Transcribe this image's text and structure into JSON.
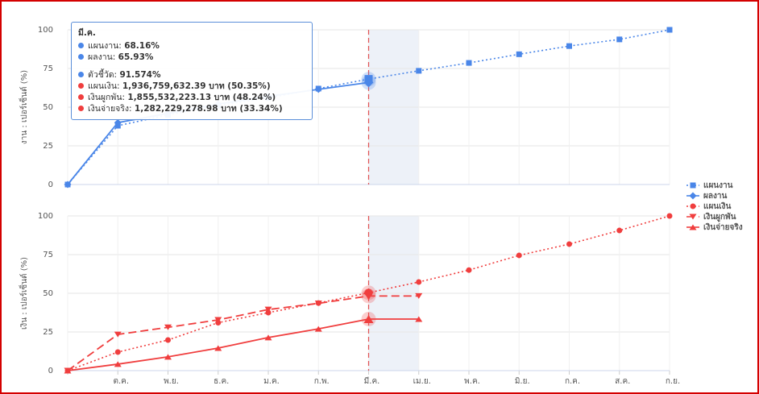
{
  "chart_data": [
    {
      "type": "line",
      "y_label": "งาน : เปอร์เซ็นต์ (%)",
      "categories": [
        null,
        "ต.ค.",
        "พ.ย.",
        "ธ.ค.",
        "ม.ค.",
        "ก.พ.",
        "มี.ค.",
        "เม.ย.",
        "พ.ค.",
        "มิ.ย.",
        "ก.ค.",
        "ส.ค.",
        "ก.ย."
      ],
      "ylim": [
        0,
        100
      ],
      "yticks": [
        0,
        25,
        50,
        75,
        100
      ],
      "grid": true,
      "series": [
        {
          "name": "แผนงาน",
          "color": "#4a86e8",
          "marker": "square",
          "dash": "dotted",
          "values": [
            0,
            38,
            45,
            51,
            56,
            62,
            68.16,
            73.5,
            78.6,
            84.2,
            89.5,
            93.8,
            100
          ]
        },
        {
          "name": "ผลงาน",
          "color": "#4a86e8",
          "marker": "diamond",
          "dash": "solid",
          "values": [
            0,
            40,
            46,
            52,
            57,
            61.5,
            65.93,
            null,
            null,
            null,
            null,
            null,
            null
          ]
        }
      ]
    },
    {
      "type": "line",
      "y_label": "เงิน : เปอร์เซ็นต์ (%)",
      "categories": [
        null,
        "ต.ค.",
        "พ.ย.",
        "ธ.ค.",
        "ม.ค.",
        "ก.พ.",
        "มี.ค.",
        "เม.ย.",
        "พ.ค.",
        "มิ.ย.",
        "ก.ค.",
        "ส.ค.",
        "ก.ย."
      ],
      "ylim": [
        0,
        100
      ],
      "yticks": [
        0,
        25,
        50,
        75,
        100
      ],
      "grid": true,
      "series": [
        {
          "name": "แผนเงิน",
          "color": "#f03e3e",
          "marker": "circle",
          "dash": "dotted",
          "values": [
            0,
            12,
            19.8,
            31,
            37.5,
            43.7,
            50.35,
            57.3,
            65,
            74.5,
            81.8,
            90.6,
            100
          ]
        },
        {
          "name": "เงินผูกพัน",
          "color": "#f03e3e",
          "marker": "triangle-down",
          "dash": "dashed",
          "values": [
            0,
            23.4,
            28,
            32.8,
            39.5,
            43.5,
            48.24,
            48.24,
            null,
            null,
            null,
            null,
            null
          ]
        },
        {
          "name": "เงินจ่ายจริง",
          "color": "#f03e3e",
          "marker": "triangle-up",
          "dash": "solid",
          "values": [
            0,
            4.2,
            8.9,
            14.6,
            21.4,
            27,
            33.34,
            33.34,
            null,
            null,
            null,
            null,
            null
          ]
        }
      ]
    }
  ],
  "tooltip": {
    "title": "มี.ค.",
    "rows": [
      {
        "label": "แผนงาน:",
        "value": "68.16%",
        "color": "#4a86e8"
      },
      {
        "label": "ผลงาน:",
        "value": "65.93%",
        "color": "#4a86e8"
      },
      {
        "label": "ตัวชี้วัด:",
        "value": "91.574%",
        "color": "#4a86e8"
      },
      {
        "label": "แผนเงิน:",
        "value": "1,936,759,632.39 บาท (50.35%)",
        "color": "#f03e3e"
      },
      {
        "label": "เงินผูกพัน:",
        "value": "1,855,532,223.13 บาท (48.24%)",
        "color": "#f03e3e"
      },
      {
        "label": "เงินจ่ายจริง:",
        "value": "1,282,229,278.98 บาท (33.34%)",
        "color": "#f03e3e"
      }
    ]
  }
}
